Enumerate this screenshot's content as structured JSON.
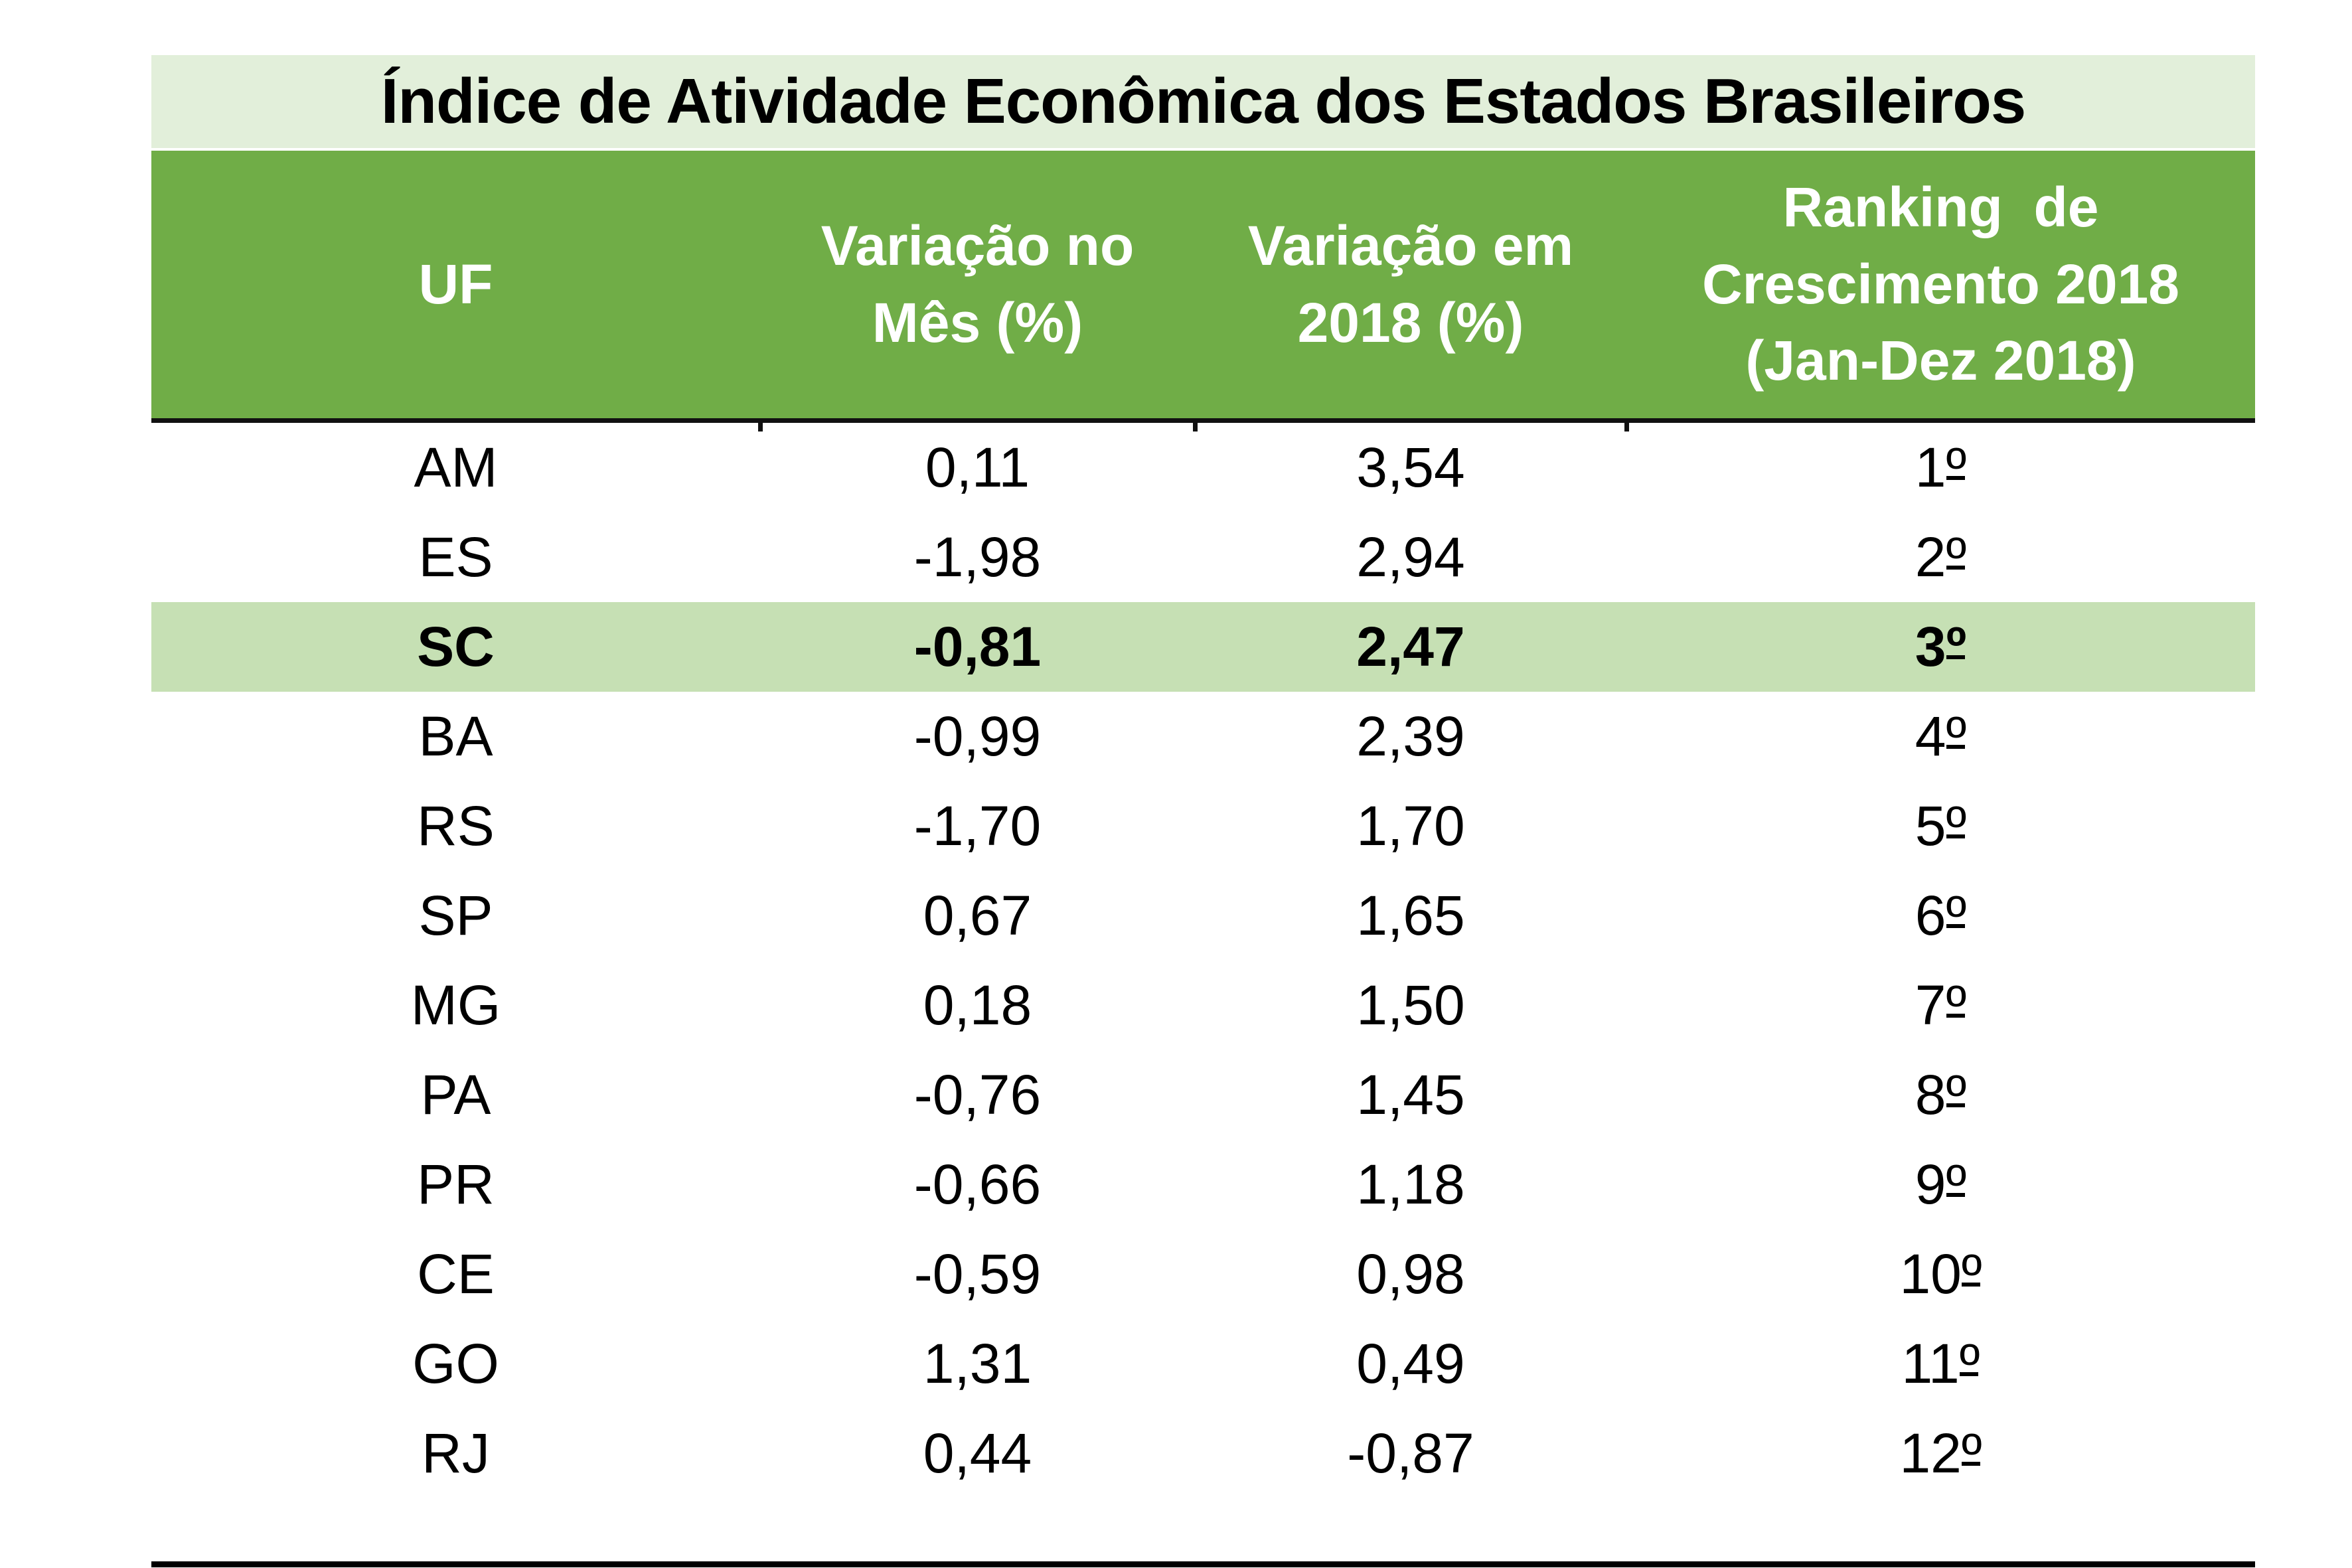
{
  "colors": {
    "title_bg": "#E2EFDA",
    "header_bg": "#70AD47",
    "highlight_bg": "#C6E0B4",
    "header_text": "#FFFFFF",
    "body_text": "#000000"
  },
  "chart_data": {
    "type": "table",
    "title": "Índice de Atividade Econômica dos Estados Brasileiros",
    "header": {
      "uf": "UF",
      "var_mes": "Variação no\nMês (%)",
      "var_2018": "Variação em\n2018 (%)",
      "ranking": "Ranking  de\nCrescimento 2018\n(Jan-Dez 2018)"
    },
    "highlighted_uf": "SC",
    "rows": [
      {
        "uf": "AM",
        "var_mes": "0,11",
        "var_2018": "3,54",
        "rank_num": "1",
        "rank_ordinal": "º",
        "highlighted": false
      },
      {
        "uf": "ES",
        "var_mes": "-1,98",
        "var_2018": "2,94",
        "rank_num": "2",
        "rank_ordinal": "º",
        "highlighted": false
      },
      {
        "uf": "SC",
        "var_mes": "-0,81",
        "var_2018": "2,47",
        "rank_num": "3",
        "rank_ordinal": "º",
        "highlighted": true
      },
      {
        "uf": "BA",
        "var_mes": "-0,99",
        "var_2018": "2,39",
        "rank_num": "4",
        "rank_ordinal": "º",
        "highlighted": false
      },
      {
        "uf": "RS",
        "var_mes": "-1,70",
        "var_2018": "1,70",
        "rank_num": "5",
        "rank_ordinal": "º",
        "highlighted": false
      },
      {
        "uf": "SP",
        "var_mes": "0,67",
        "var_2018": "1,65",
        "rank_num": "6",
        "rank_ordinal": "º",
        "highlighted": false
      },
      {
        "uf": "MG",
        "var_mes": "0,18",
        "var_2018": "1,50",
        "rank_num": "7",
        "rank_ordinal": "º",
        "highlighted": false
      },
      {
        "uf": "PA",
        "var_mes": "-0,76",
        "var_2018": "1,45",
        "rank_num": "8",
        "rank_ordinal": "º",
        "highlighted": false
      },
      {
        "uf": "PR",
        "var_mes": "-0,66",
        "var_2018": "1,18",
        "rank_num": "9",
        "rank_ordinal": "º",
        "highlighted": false
      },
      {
        "uf": "CE",
        "var_mes": "-0,59",
        "var_2018": "0,98",
        "rank_num": "10",
        "rank_ordinal": "º",
        "highlighted": false
      },
      {
        "uf": "GO",
        "var_mes": "1,31",
        "var_2018": "0,49",
        "rank_num": "11",
        "rank_ordinal": "º",
        "highlighted": false
      },
      {
        "uf": "RJ",
        "var_mes": "0,44",
        "var_2018": "-0,87",
        "rank_num": "12",
        "rank_ordinal": "º",
        "highlighted": false
      }
    ]
  }
}
